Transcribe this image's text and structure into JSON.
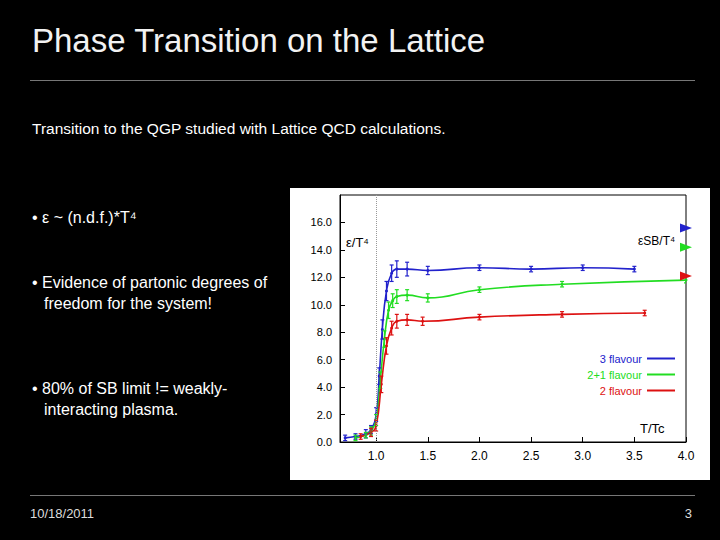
{
  "slide": {
    "title": "Phase Transition on the Lattice",
    "intro": "Transition to the QGP studied with Lattice QCD calculations.",
    "bullets": [
      "• ε ~ (n.d.f.)*T⁴",
      "• Evidence of partonic degrees of freedom for the system!",
      "• 80% of SB limit != weakly-interacting plasma."
    ],
    "footer_date": "10/18/2011",
    "page_number": 3
  },
  "chart_data": {
    "type": "line",
    "x_label": "T/Tc",
    "y_label": "ε/T⁴",
    "annotation": "εSB/T⁴",
    "xlim": [
      0.65,
      4.0
    ],
    "xticks": [
      {
        "value": 1.0,
        "label": "1.0"
      },
      {
        "value": 1.5,
        "label": "1.5"
      },
      {
        "value": 2.0,
        "label": "2.0"
      },
      {
        "value": 2.5,
        "label": "2.5"
      },
      {
        "value": 3.0,
        "label": "3.0"
      },
      {
        "value": 3.5,
        "label": "3.5"
      },
      {
        "value": 4.0,
        "label": "4.0"
      }
    ],
    "ylim": [
      0,
      18
    ],
    "yticks": [
      {
        "value": 0,
        "label": "0.0"
      },
      {
        "value": 2,
        "label": "2.0"
      },
      {
        "value": 4,
        "label": "4.0"
      },
      {
        "value": 6,
        "label": "6.0"
      },
      {
        "value": 8,
        "label": "8.0"
      },
      {
        "value": 10,
        "label": "10.0"
      },
      {
        "value": 12,
        "label": "12.0"
      },
      {
        "value": 14,
        "label": "14.0"
      },
      {
        "value": 16,
        "label": "16.0"
      }
    ],
    "reference_line_x": 1.0,
    "grid": false,
    "legend": "right",
    "marker": "circle",
    "series": [
      {
        "name": "3 flavour",
        "color": "#2222cc",
        "sb_limit": 15.6,
        "x": [
          0.7,
          0.8,
          0.9,
          0.95,
          1.0,
          1.03,
          1.06,
          1.1,
          1.15,
          1.2,
          1.3,
          1.5,
          2.0,
          2.5,
          3.0,
          3.5
        ],
        "values": [
          0.3,
          0.4,
          0.6,
          0.9,
          2.0,
          4.8,
          8.2,
          11.0,
          12.3,
          12.6,
          12.6,
          12.5,
          12.7,
          12.6,
          12.7,
          12.6
        ],
        "errors": [
          0.2,
          0.2,
          0.3,
          0.3,
          0.5,
          0.6,
          0.7,
          0.7,
          0.6,
          0.6,
          0.5,
          0.3,
          0.2,
          0.2,
          0.2,
          0.2
        ]
      },
      {
        "name": "2+1 flavour",
        "color": "#22dd22",
        "sb_limit": 14.2,
        "x": [
          0.8,
          0.9,
          0.95,
          1.0,
          1.04,
          1.08,
          1.12,
          1.16,
          1.2,
          1.3,
          1.5,
          2.0,
          2.8,
          4.0
        ],
        "values": [
          0.3,
          0.5,
          0.8,
          1.6,
          4.5,
          7.5,
          9.6,
          10.3,
          10.6,
          10.7,
          10.5,
          11.1,
          11.5,
          11.8
        ],
        "errors": [
          0.2,
          0.2,
          0.3,
          0.4,
          0.6,
          0.6,
          0.6,
          0.5,
          0.5,
          0.4,
          0.3,
          0.2,
          0.2,
          0.2
        ]
      },
      {
        "name": "2 flavour",
        "color": "#dd1111",
        "sb_limit": 12.1,
        "x": [
          0.85,
          0.95,
          1.0,
          1.05,
          1.1,
          1.15,
          1.2,
          1.3,
          1.45,
          2.0,
          2.8,
          3.6
        ],
        "values": [
          0.4,
          0.7,
          1.2,
          4.2,
          7.0,
          8.3,
          8.8,
          8.9,
          8.8,
          9.1,
          9.3,
          9.4
        ],
        "errors": [
          0.2,
          0.3,
          0.4,
          0.6,
          0.6,
          0.5,
          0.5,
          0.4,
          0.3,
          0.2,
          0.2,
          0.2
        ]
      }
    ]
  }
}
